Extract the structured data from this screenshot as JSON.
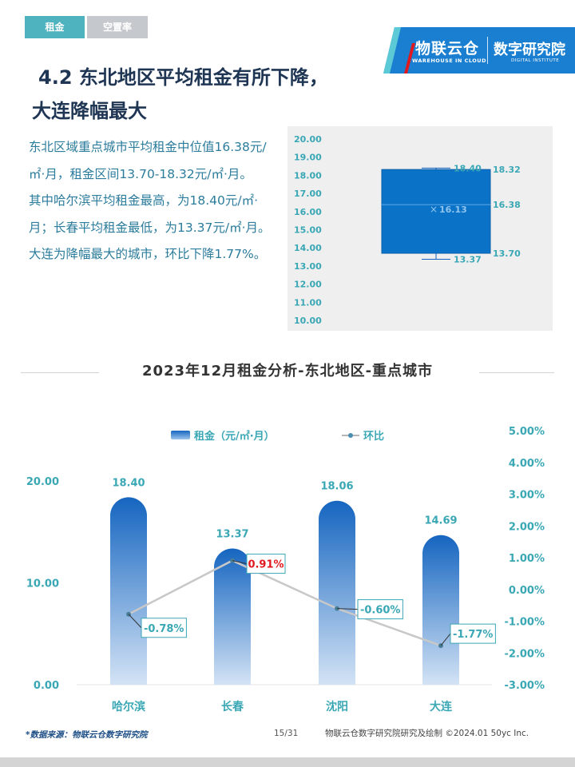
{
  "tabs": [
    {
      "label": "租金",
      "active": true
    },
    {
      "label": "空置率",
      "active": false
    }
  ],
  "brand": {
    "name": "物联云仓",
    "sub": "WAREHOUSE IN CLOUD",
    "institute": "数字研究院",
    "institute_sub": "DIGITAL INSTITUTE"
  },
  "headline": {
    "line1": "4.2 东北地区平均租金有所下降，",
    "line2": "大连降幅最大"
  },
  "paragraphs": [
    "东北区域重点城市平均租金中位值16.38元/㎡·月，租金区间13.70-18.32元/㎡·月。",
    "其中哈尔滨平均租金最高，为18.40元/㎡·月；长春平均租金最低，为13.37元/㎡·月。大连为降幅最大的城市，环比下降1.77%。"
  ],
  "colors": {
    "accent": "#4fb3bf",
    "bar_top": "#1565c0",
    "bar_bottom": "#cfe0f3",
    "box_fill": "#0b73c7",
    "line": "#c8c8c8",
    "axis_text": "#3aa7b5",
    "highlight_red": "#e0191e"
  },
  "chart_data": [
    {
      "type": "box",
      "y_ticks": [
        "20.00",
        "19.00",
        "18.00",
        "17.00",
        "16.00",
        "15.00",
        "14.00",
        "13.00",
        "12.00",
        "11.00",
        "10.00"
      ],
      "ylim": [
        10,
        20
      ],
      "max": 18.4,
      "q3": 18.32,
      "median": 16.38,
      "mean": 16.13,
      "q1": 13.7,
      "min": 13.37
    },
    {
      "type": "bar",
      "title": "2023年12月租金分析-东北地区-重点城市",
      "categories": [
        "哈尔滨",
        "长春",
        "沈阳",
        "大连"
      ],
      "left_axis": {
        "ticks": [
          "20.00",
          "10.00",
          "0.00"
        ],
        "ylim": [
          0,
          20
        ]
      },
      "right_axis": {
        "ticks": [
          "5.00%",
          "4.00%",
          "3.00%",
          "2.00%",
          "1.00%",
          "0.00%",
          "-1.00%",
          "-2.00%",
          "-3.00%"
        ],
        "ylim": [
          -3,
          5
        ]
      },
      "series": [
        {
          "name": "租金（元/㎡·月）",
          "type": "bar",
          "values": [
            18.4,
            13.37,
            18.06,
            14.69
          ],
          "labels": [
            "18.40",
            "13.37",
            "18.06",
            "14.69"
          ]
        },
        {
          "name": "环比",
          "type": "line",
          "values": [
            -0.78,
            0.91,
            -0.6,
            -1.77
          ],
          "labels": [
            "-0.78%",
            "0.91%",
            "-0.60%",
            "-1.77%"
          ],
          "highlight_index": 1
        }
      ],
      "legend_position": "top"
    }
  ],
  "footer": {
    "source": "*数据来源：物联云仓数字研究院",
    "page": "15/31",
    "copyright": "物联云仓数字研究院研究及绘制  ©2024.01 50yc Inc."
  }
}
